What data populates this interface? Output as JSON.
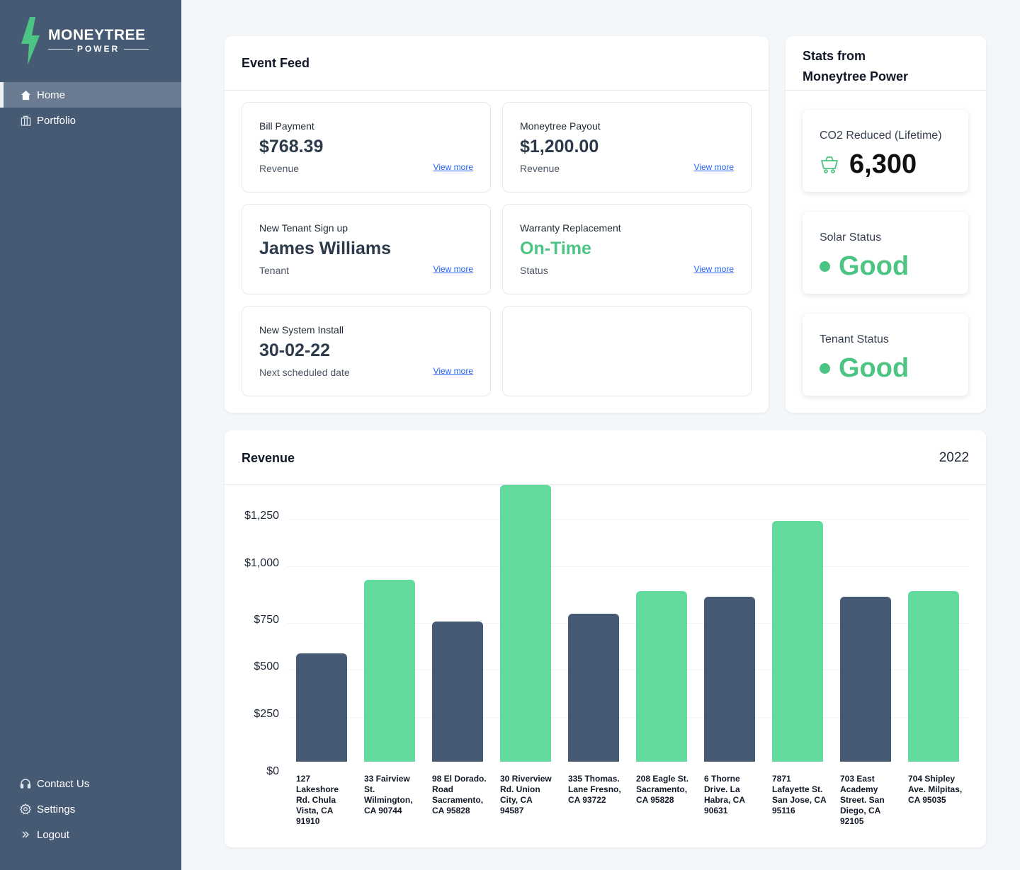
{
  "brand": {
    "name": "MONEYTREE",
    "sub": "POWER",
    "accent": "#4cc483"
  },
  "nav": {
    "items": [
      {
        "label": "Home",
        "icon": "home-icon",
        "active": true
      },
      {
        "label": "Portfolio",
        "icon": "portfolio-icon",
        "active": false
      }
    ],
    "bottom": [
      {
        "label": "Contact Us",
        "icon": "headset-icon"
      },
      {
        "label": "Settings",
        "icon": "gear-icon"
      },
      {
        "label": "Logout",
        "icon": "chevrons-right-icon"
      }
    ]
  },
  "event_feed": {
    "title": "Event Feed",
    "cards": [
      {
        "label": "Bill Payment",
        "value": "$768.39",
        "sub": "Revenue",
        "link": "View more"
      },
      {
        "label": "Moneytree Payout",
        "value": "$1,200.00",
        "sub": "Revenue",
        "link": "View more"
      },
      {
        "label": "New Tenant Sign up",
        "value": "James Williams",
        "sub": "Tenant",
        "link": "View more"
      },
      {
        "label": "Warranty Replacement",
        "value": "On-Time",
        "sub": "Status",
        "link": "View more"
      },
      {
        "label": "New System Install",
        "value": "30-02-22",
        "sub": "Next scheduled date",
        "link": "View more"
      }
    ]
  },
  "stats": {
    "title_line1": "Stats from",
    "title_line2": "Moneytree Power",
    "co2": {
      "label": "CO2 Reduced (Lifetime)",
      "value": "6,300",
      "icon": "cart-icon"
    },
    "solar": {
      "label": "Solar Status",
      "value": "Good"
    },
    "tenant": {
      "label": "Tenant Status",
      "value": "Good"
    }
  },
  "revenue": {
    "title": "Revenue",
    "year": "2022"
  },
  "chart_data": {
    "type": "bar",
    "title": "Revenue",
    "y_tick_labels": [
      "$1,250",
      "$1,000",
      "$750",
      "$500",
      "$250",
      "$0"
    ],
    "categories": [
      "127 Lakeshore Rd. Chula Vista, CA 91910",
      "33 Fairview St. Wilmington, CA 90744",
      "98 El Dorado. Road Sacramento, CA 95828",
      "30 Riverview Rd. Union City, CA 94587",
      "335 Thomas. Lane Fresno, CA 93722",
      "208 Eagle St. Sacramento, CA 95828",
      "6 Thorne Drive. La Habra, CA 90631",
      "7871 Lafayette St. San Jose, CA 95116",
      "703 East Academy Street. San Diego, CA 92105",
      "704 Shipley Ave. Milpitas, CA 95035"
    ],
    "values": [
      570,
      960,
      740,
      1460,
      780,
      900,
      870,
      1270,
      870,
      900
    ],
    "colors": [
      "#475a74",
      "#62d99d",
      "#475a74",
      "#62d99d",
      "#475a74",
      "#62d99d",
      "#475a74",
      "#62d99d",
      "#475a74",
      "#62d99d"
    ],
    "grid": true
  }
}
